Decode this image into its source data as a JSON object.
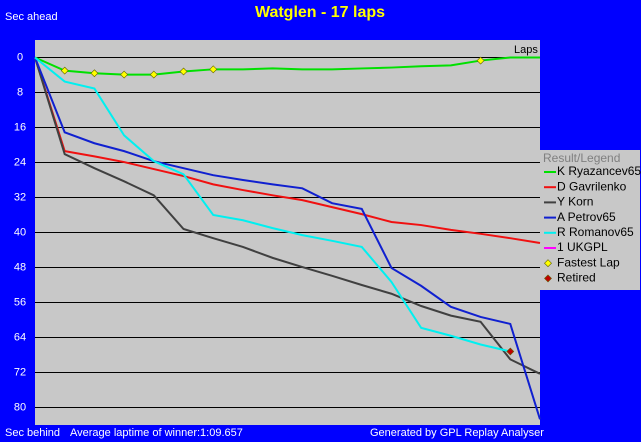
{
  "chart_data": {
    "type": "line",
    "title": "Watglen - 17 laps",
    "y_label_top": "Sec ahead",
    "y_label_bottom": "Sec behind",
    "x_label": "Laps",
    "footer_left": "Average laptime of winner:1:09.657",
    "footer_right": "Generated by GPL Replay Analyser",
    "legend_title": "Result/Legend",
    "legend_position": "right",
    "grid": true,
    "x": [
      0,
      1,
      2,
      3,
      4,
      5,
      6,
      7,
      8,
      9,
      10,
      11,
      12,
      13,
      14,
      15,
      16,
      17
    ],
    "xlim": [
      0,
      17
    ],
    "ylim": [
      84,
      -4
    ],
    "yticks": [
      0,
      8,
      16,
      24,
      32,
      40,
      48,
      56,
      64,
      72,
      80
    ],
    "series": [
      {
        "name": "K Ryazancev65",
        "color": "#00e000",
        "kind": "line",
        "values": [
          0,
          3,
          3.6,
          3.9,
          3.9,
          3.2,
          2.7,
          2.7,
          2.5,
          2.7,
          2.7,
          2.5,
          2.3,
          2,
          1.8,
          0.7,
          0,
          0
        ]
      },
      {
        "name": "D Gavrilenko",
        "color": "#f01010",
        "kind": "line",
        "values": [
          0,
          21.4,
          22.6,
          23.9,
          25.5,
          27.1,
          29,
          30.3,
          31.5,
          32.6,
          34.2,
          35.8,
          37.6,
          38.3,
          39.4,
          40.3,
          41.3,
          42.4
        ]
      },
      {
        "name": "Y Korn",
        "color": "#404040",
        "kind": "line",
        "values": [
          0,
          22.1,
          25.3,
          28.3,
          31.5,
          39.2,
          41.3,
          43.3,
          45.8,
          47.9,
          49.9,
          52,
          54,
          56.8,
          59,
          60.4,
          69,
          72.3
        ]
      },
      {
        "name": "A Petrov65",
        "color": "#1020d0",
        "kind": "line",
        "values": [
          0,
          17.1,
          19.6,
          21.4,
          23.7,
          25.3,
          26.9,
          28,
          29,
          29.9,
          33.3,
          34.6,
          48.1,
          52.2,
          57,
          59.3,
          60.9,
          82.7
        ]
      },
      {
        "name": "R Romanov65",
        "color": "#00f0f0",
        "kind": "line",
        "values": [
          0,
          5.5,
          7.1,
          17.8,
          23.7,
          26.7,
          36,
          37.2,
          39,
          40.6,
          41.9,
          43.3,
          51.3,
          61.8,
          63.6,
          65.6,
          67.2,
          null
        ]
      },
      {
        "name": "1 UKGPL",
        "color": "#ff00ff",
        "kind": "line",
        "values": [
          null,
          null,
          null,
          null,
          null,
          null,
          null,
          null,
          null,
          null,
          null,
          null,
          null,
          null,
          null,
          null,
          null,
          null
        ]
      },
      {
        "name": "Fastest Lap",
        "color": "#ffff00",
        "kind": "marker",
        "x": [
          1,
          2,
          3,
          4,
          5,
          6,
          15
        ],
        "values": [
          3,
          3.6,
          3.9,
          3.9,
          3.2,
          2.7,
          0.7
        ]
      },
      {
        "name": "Retired",
        "color": "#c00000",
        "kind": "marker",
        "x": [
          16
        ],
        "values": [
          67.2
        ]
      }
    ]
  }
}
